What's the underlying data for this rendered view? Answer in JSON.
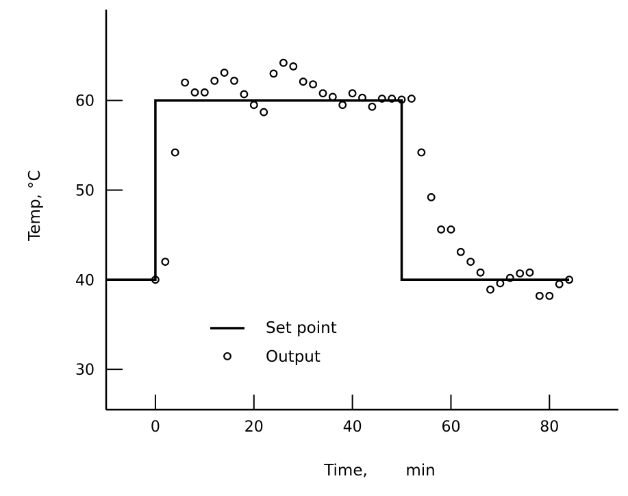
{
  "chart_data": {
    "type": "line",
    "title": "",
    "xlabel": "Time,",
    "xunit": "min",
    "ylabel": "Temp, °C",
    "xlim": [
      -10,
      94
    ],
    "ylim": [
      25.5,
      68
    ],
    "xticks": [
      0,
      20,
      40,
      60,
      80
    ],
    "yticks": [
      30,
      40,
      50,
      60
    ],
    "grid": false,
    "legend_position": "bottom-center",
    "series": [
      {
        "name": "Set point",
        "style": "line",
        "x": [
          -10,
          0,
          0,
          50,
          50,
          84
        ],
        "y": [
          40,
          40,
          60,
          60,
          40,
          40
        ]
      },
      {
        "name": "Output",
        "style": "open-circle",
        "x": [
          0,
          2,
          4,
          6,
          8,
          10,
          12,
          14,
          16,
          18,
          20,
          22,
          24,
          26,
          28,
          30,
          32,
          34,
          36,
          38,
          40,
          42,
          44,
          46,
          48,
          50,
          52,
          54,
          56,
          58,
          60,
          62,
          64,
          66,
          68,
          70,
          72,
          74,
          76,
          78,
          80,
          82,
          84
        ],
        "y": [
          40,
          42,
          54.2,
          62,
          60.9,
          60.9,
          62.2,
          63.1,
          62.2,
          60.7,
          59.5,
          58.7,
          63,
          64.2,
          63.8,
          62.1,
          61.8,
          60.8,
          60.4,
          59.5,
          60.8,
          60.3,
          59.3,
          60.2,
          60.2,
          60.1,
          60.2,
          54.2,
          49.2,
          45.6,
          45.6,
          43.1,
          42,
          40.8,
          38.9,
          39.6,
          40.2,
          40.7,
          40.8,
          38.2,
          38.2,
          39.5,
          40
        ]
      }
    ]
  }
}
